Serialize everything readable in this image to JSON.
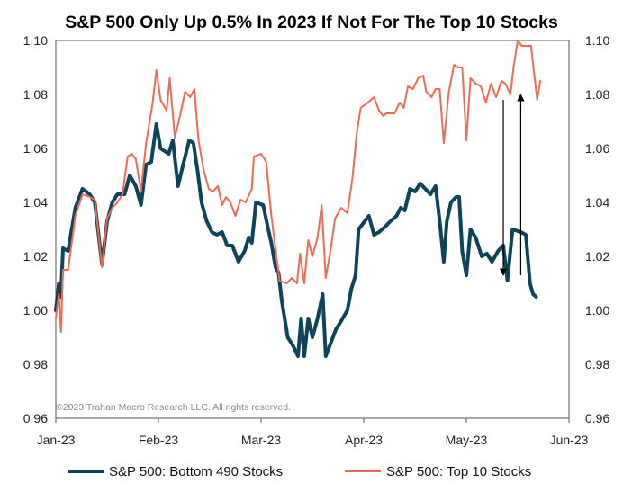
{
  "chart_data": {
    "type": "line",
    "title": "S&P 500 Only Up 0.5% In 2023 If Not For The Top 10 Stocks",
    "xlabel": "",
    "ylabel": "",
    "ylim": [
      0.96,
      1.1
    ],
    "yticks": [
      "0.96",
      "0.98",
      "1.00",
      "1.02",
      "1.04",
      "1.06",
      "1.08",
      "1.10"
    ],
    "xlim": [
      0,
      5
    ],
    "xticks": [
      {
        "x": 0,
        "label": "Jan-23"
      },
      {
        "x": 1,
        "label": "Feb-23"
      },
      {
        "x": 2,
        "label": "Mar-23"
      },
      {
        "x": 3,
        "label": "Apr-23"
      },
      {
        "x": 4,
        "label": "May-23"
      },
      {
        "x": 5,
        "label": "Jun-23"
      }
    ],
    "annotation": "©2023 Trahan Macro Research LLC. All rights reserved.",
    "series": [
      {
        "name": "S&P 500: Bottom 490 Stocks",
        "color": "#0d4459",
        "points": [
          [
            0.0,
            1.0
          ],
          [
            0.03,
            1.01
          ],
          [
            0.05,
            1.005
          ],
          [
            0.07,
            1.023
          ],
          [
            0.12,
            1.022
          ],
          [
            0.19,
            1.038
          ],
          [
            0.26,
            1.045
          ],
          [
            0.33,
            1.043
          ],
          [
            0.38,
            1.04
          ],
          [
            0.45,
            1.017
          ],
          [
            0.5,
            1.033
          ],
          [
            0.55,
            1.04
          ],
          [
            0.6,
            1.043
          ],
          [
            0.67,
            1.043
          ],
          [
            0.72,
            1.05
          ],
          [
            0.78,
            1.046
          ],
          [
            0.83,
            1.039
          ],
          [
            0.88,
            1.054
          ],
          [
            0.93,
            1.055
          ],
          [
            0.98,
            1.069
          ],
          [
            1.02,
            1.06
          ],
          [
            1.1,
            1.058
          ],
          [
            1.14,
            1.063
          ],
          [
            1.19,
            1.046
          ],
          [
            1.24,
            1.054
          ],
          [
            1.3,
            1.063
          ],
          [
            1.34,
            1.062
          ],
          [
            1.38,
            1.052
          ],
          [
            1.42,
            1.04
          ],
          [
            1.47,
            1.033
          ],
          [
            1.52,
            1.029
          ],
          [
            1.57,
            1.028
          ],
          [
            1.62,
            1.029
          ],
          [
            1.67,
            1.024
          ],
          [
            1.72,
            1.024
          ],
          [
            1.78,
            1.018
          ],
          [
            1.84,
            1.022
          ],
          [
            1.88,
            1.027
          ],
          [
            1.91,
            1.025
          ],
          [
            1.95,
            1.04
          ],
          [
            2.02,
            1.039
          ],
          [
            2.07,
            1.03
          ],
          [
            2.1,
            1.025
          ],
          [
            2.14,
            1.016
          ],
          [
            2.17,
            1.014
          ],
          [
            2.2,
            1.004
          ],
          [
            2.26,
            0.99
          ],
          [
            2.31,
            0.987
          ],
          [
            2.36,
            0.983
          ],
          [
            2.39,
            0.997
          ],
          [
            2.42,
            0.983
          ],
          [
            2.46,
            0.997
          ],
          [
            2.5,
            0.99
          ],
          [
            2.55,
            0.997
          ],
          [
            2.6,
            1.006
          ],
          [
            2.63,
            0.983
          ],
          [
            2.68,
            0.988
          ],
          [
            2.73,
            0.993
          ],
          [
            2.78,
            0.996
          ],
          [
            2.84,
            1.0
          ],
          [
            2.88,
            1.008
          ],
          [
            2.92,
            1.013
          ],
          [
            2.95,
            1.03
          ],
          [
            3.05,
            1.035
          ],
          [
            3.1,
            1.028
          ],
          [
            3.15,
            1.029
          ],
          [
            3.21,
            1.031
          ],
          [
            3.26,
            1.033
          ],
          [
            3.32,
            1.035
          ],
          [
            3.36,
            1.038
          ],
          [
            3.4,
            1.037
          ],
          [
            3.45,
            1.045
          ],
          [
            3.5,
            1.044
          ],
          [
            3.55,
            1.047
          ],
          [
            3.6,
            1.045
          ],
          [
            3.65,
            1.043
          ],
          [
            3.7,
            1.046
          ],
          [
            3.74,
            1.033
          ],
          [
            3.78,
            1.018
          ],
          [
            3.81,
            1.033
          ],
          [
            3.85,
            1.04
          ],
          [
            3.9,
            1.042
          ],
          [
            3.93,
            1.042
          ],
          [
            3.96,
            1.022
          ],
          [
            4.0,
            1.013
          ],
          [
            4.04,
            1.03
          ],
          [
            4.09,
            1.027
          ],
          [
            4.15,
            1.02
          ],
          [
            4.2,
            1.021
          ],
          [
            4.25,
            1.018
          ],
          [
            4.31,
            1.022
          ],
          [
            4.36,
            1.024
          ],
          [
            4.4,
            1.011
          ],
          [
            4.45,
            1.03
          ],
          [
            4.53,
            1.029
          ],
          [
            4.58,
            1.028
          ],
          [
            4.62,
            1.01
          ],
          [
            4.65,
            1.006
          ],
          [
            4.68,
            1.005
          ]
        ]
      },
      {
        "name": "S&P 500: Top 10 Stocks",
        "color": "#ef6a55",
        "points": [
          [
            0.0,
            0.997
          ],
          [
            0.03,
            1.006
          ],
          [
            0.05,
            0.992
          ],
          [
            0.07,
            1.015
          ],
          [
            0.12,
            1.015
          ],
          [
            0.19,
            1.035
          ],
          [
            0.26,
            1.043
          ],
          [
            0.33,
            1.042
          ],
          [
            0.38,
            1.041
          ],
          [
            0.45,
            1.016
          ],
          [
            0.5,
            1.034
          ],
          [
            0.55,
            1.038
          ],
          [
            0.6,
            1.04
          ],
          [
            0.65,
            1.043
          ],
          [
            0.7,
            1.057
          ],
          [
            0.74,
            1.058
          ],
          [
            0.78,
            1.056
          ],
          [
            0.83,
            1.044
          ],
          [
            0.88,
            1.062
          ],
          [
            0.94,
            1.076
          ],
          [
            0.98,
            1.089
          ],
          [
            1.02,
            1.078
          ],
          [
            1.08,
            1.074
          ],
          [
            1.11,
            1.086
          ],
          [
            1.16,
            1.064
          ],
          [
            1.21,
            1.072
          ],
          [
            1.26,
            1.081
          ],
          [
            1.31,
            1.079
          ],
          [
            1.35,
            1.082
          ],
          [
            1.39,
            1.063
          ],
          [
            1.44,
            1.052
          ],
          [
            1.49,
            1.045
          ],
          [
            1.53,
            1.044
          ],
          [
            1.58,
            1.046
          ],
          [
            1.62,
            1.039
          ],
          [
            1.66,
            1.042
          ],
          [
            1.7,
            1.04
          ],
          [
            1.75,
            1.035
          ],
          [
            1.8,
            1.041
          ],
          [
            1.85,
            1.04
          ],
          [
            1.91,
            1.045
          ],
          [
            1.93,
            1.057
          ],
          [
            2.0,
            1.058
          ],
          [
            2.05,
            1.055
          ],
          [
            2.1,
            1.035
          ],
          [
            2.14,
            1.023
          ],
          [
            2.18,
            1.011
          ],
          [
            2.25,
            1.01
          ],
          [
            2.3,
            1.012
          ],
          [
            2.35,
            1.01
          ],
          [
            2.38,
            1.021
          ],
          [
            2.42,
            1.01
          ],
          [
            2.46,
            1.026
          ],
          [
            2.5,
            1.02
          ],
          [
            2.55,
            1.027
          ],
          [
            2.59,
            1.039
          ],
          [
            2.63,
            1.012
          ],
          [
            2.68,
            1.023
          ],
          [
            2.72,
            1.034
          ],
          [
            2.78,
            1.038
          ],
          [
            2.84,
            1.036
          ],
          [
            2.89,
            1.049
          ],
          [
            2.93,
            1.065
          ],
          [
            2.97,
            1.075
          ],
          [
            3.04,
            1.077
          ],
          [
            3.1,
            1.079
          ],
          [
            3.15,
            1.074
          ],
          [
            3.19,
            1.072
          ],
          [
            3.22,
            1.073
          ],
          [
            3.3,
            1.073
          ],
          [
            3.35,
            1.077
          ],
          [
            3.39,
            1.075
          ],
          [
            3.43,
            1.083
          ],
          [
            3.48,
            1.082
          ],
          [
            3.53,
            1.086
          ],
          [
            3.58,
            1.087
          ],
          [
            3.61,
            1.081
          ],
          [
            3.66,
            1.079
          ],
          [
            3.7,
            1.082
          ],
          [
            3.74,
            1.082
          ],
          [
            3.78,
            1.062
          ],
          [
            3.83,
            1.081
          ],
          [
            3.88,
            1.091
          ],
          [
            3.92,
            1.09
          ],
          [
            3.96,
            1.09
          ],
          [
            4.0,
            1.063
          ],
          [
            4.04,
            1.086
          ],
          [
            4.09,
            1.084
          ],
          [
            4.14,
            1.083
          ],
          [
            4.19,
            1.077
          ],
          [
            4.24,
            1.084
          ],
          [
            4.29,
            1.079
          ],
          [
            4.34,
            1.085
          ],
          [
            4.38,
            1.084
          ],
          [
            4.43,
            1.08
          ],
          [
            4.46,
            1.09
          ],
          [
            4.5,
            1.1
          ],
          [
            4.54,
            1.098
          ],
          [
            4.58,
            1.098
          ],
          [
            4.63,
            1.098
          ],
          [
            4.66,
            1.088
          ],
          [
            4.69,
            1.078
          ],
          [
            4.72,
            1.085
          ]
        ]
      }
    ],
    "arrows": [
      {
        "direction": "down",
        "x": 4.36,
        "from": 1.078,
        "to": 1.013
      },
      {
        "direction": "up",
        "x": 4.53,
        "from": 1.013,
        "to": 1.08
      }
    ]
  }
}
